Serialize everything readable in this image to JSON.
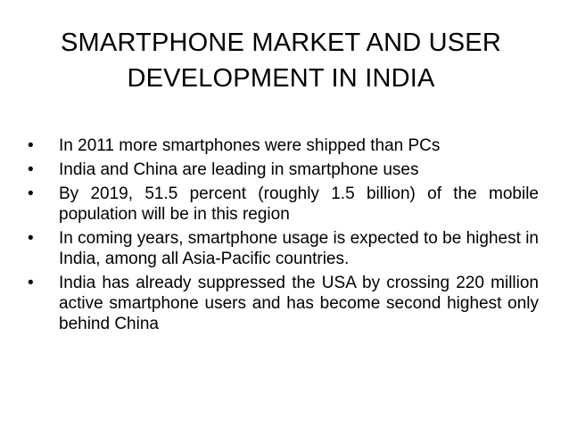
{
  "slide": {
    "title_lines": [
      "SMARTPHONE MARKET AND USER",
      "DEVELOPMENT IN INDIA"
    ],
    "bullet_symbol": "•",
    "bullets": [
      "In 2011 more smartphones were shipped than PCs",
      "India and China are leading in smartphone uses",
      "By 2019, 51.5 percent (roughly 1.5 billion) of the mobile population will be in this region",
      "In coming years, smartphone usage is expected to be highest in India, among all Asia-Pacific countries.",
      "India has already suppressed the USA by crossing 220 million active smartphone users and has become second highest only behind China"
    ]
  }
}
